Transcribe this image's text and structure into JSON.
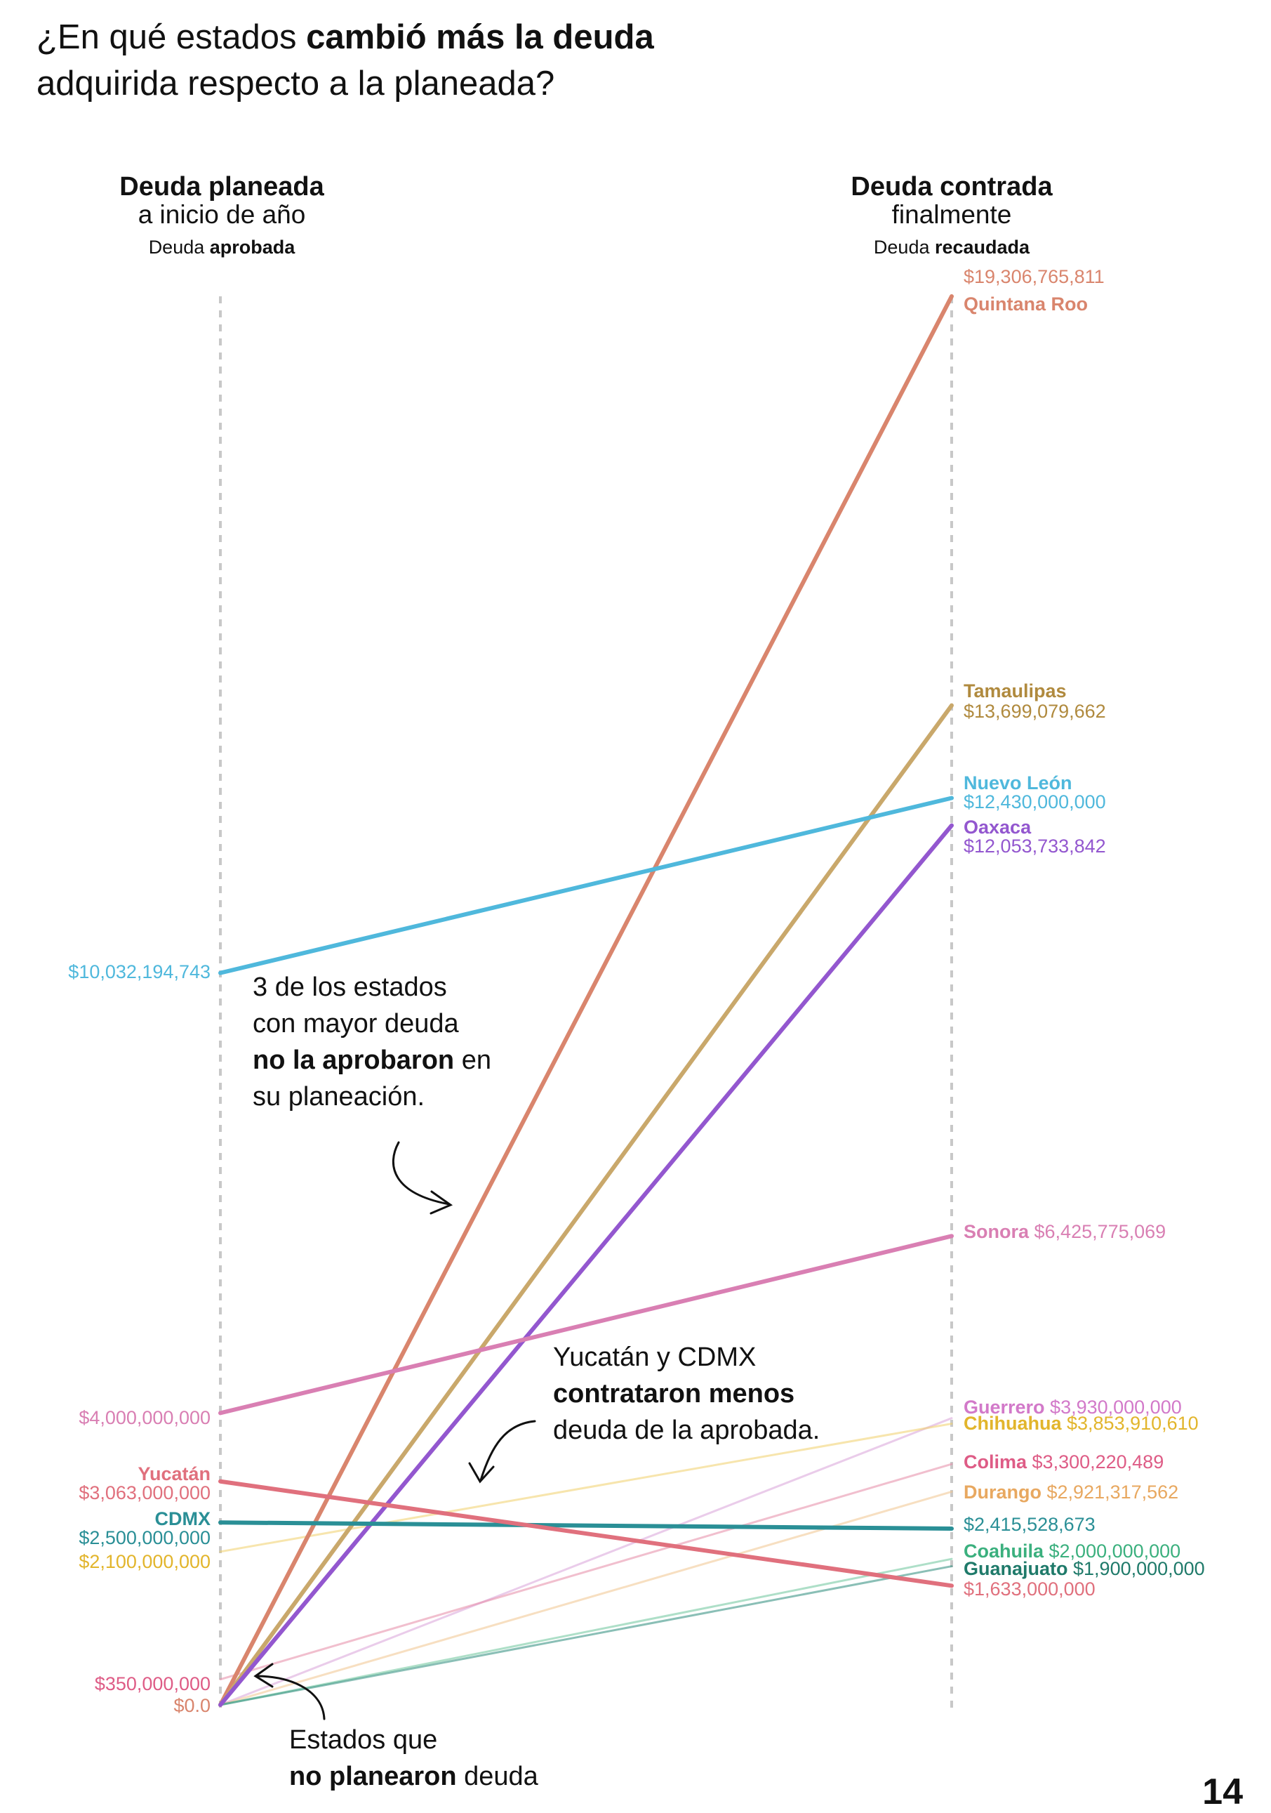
{
  "title": {
    "part1": "¿En qué estados ",
    "bold": "cambió más la deuda",
    "part2": "adquirida respecto a la planeada?"
  },
  "left_header": {
    "line1": "Deuda planeada",
    "line2": "a inicio de año",
    "sub_prefix": "Deuda ",
    "sub_bold": "aprobada"
  },
  "right_header": {
    "line1": "Deuda contrada",
    "line2": "finalmente",
    "sub_prefix": "Deuda ",
    "sub_bold": "recaudada"
  },
  "annotations": {
    "a1_line1": "3 de los estados",
    "a1_line2": "con mayor deuda",
    "a1_bold": "no la aprobaron",
    "a1_after_bold": " en",
    "a1_line4": "su planeación.",
    "a2_line1": "Yucatán y CDMX",
    "a2_bold": "contrataron menos",
    "a2_line3": "deuda de la aprobada.",
    "a3_line1": "Estados que",
    "a3_bold": "no planearon",
    "a3_after_bold": " deuda"
  },
  "page_number": "14",
  "chart_data": {
    "type": "slope",
    "ylim": [
      0,
      19306765811
    ],
    "series": [
      {
        "name": "Quintana Roo",
        "start": 0,
        "end": 19306765811,
        "start_label": "",
        "end_label": "$19,306,765,811",
        "color": "#d9856d",
        "highlight": true
      },
      {
        "name": "Tamaulipas",
        "start": 0,
        "end": 13699079662,
        "start_label": "",
        "end_label": "$13,699,079,662",
        "color": "#c9a86b",
        "highlight": true
      },
      {
        "name": "Nuevo León",
        "start": 10032194743,
        "end": 12430000000,
        "start_label": "$10,032,194,743",
        "end_label": "$12,430,000,000",
        "color": "#4fb8dc",
        "highlight": true
      },
      {
        "name": "Oaxaca",
        "start": 0,
        "end": 12053733842,
        "start_label": "",
        "end_label": "$12,053,733,842",
        "color": "#9357cf",
        "highlight": true
      },
      {
        "name": "Sonora",
        "start": 4000000000,
        "end": 6425775069,
        "start_label": "$4,000,000,000",
        "end_label": "$6,425,775,069",
        "color": "#d97fb3",
        "highlight": true
      },
      {
        "name": "Guerrero",
        "start": 0,
        "end": 3930000000,
        "start_label": "",
        "end_label": "$3,930,000,000",
        "color": "#d8a2d8",
        "highlight": false
      },
      {
        "name": "Chihuahua",
        "start": 2100000000,
        "end": 3853910610,
        "start_label": "$2,100,000,000",
        "end_label": "$3,853,910,610",
        "color": "#f0d06a",
        "highlight": false
      },
      {
        "name": "Colima",
        "start": 350000000,
        "end": 3300220489,
        "start_label": "$350,000,000",
        "end_label": "$3,300,220,489",
        "color": "#e58aa6",
        "highlight": false
      },
      {
        "name": "Durango",
        "start": 0,
        "end": 2921317562,
        "start_label": "",
        "end_label": "$2,921,317,562",
        "color": "#f0c48e",
        "highlight": false
      },
      {
        "name": "CDMX",
        "start": 2500000000,
        "end": 2415528673,
        "start_label": "$2,500,000,000",
        "end_label": "$2,415,528,673",
        "color": "#2a8f96",
        "highlight": true
      },
      {
        "name": "Coahuila",
        "start": 0,
        "end": 2000000000,
        "start_label": "",
        "end_label": "$2,000,000,000",
        "color": "#6cc59b",
        "highlight": false
      },
      {
        "name": "Guanajuato",
        "start": 0,
        "end": 1900000000,
        "start_label": "",
        "end_label": "$1,900,000,000",
        "color": "#2a8a7a",
        "highlight": false
      },
      {
        "name": "Yucatán",
        "start": 3063000000,
        "end": 1633000000,
        "start_label": "$3,063,000,000",
        "end_label": "$1,633,000,000",
        "color": "#e0707d",
        "highlight": true
      }
    ],
    "zero_label": "$0.0",
    "zero_label_color": "#d9856d"
  }
}
